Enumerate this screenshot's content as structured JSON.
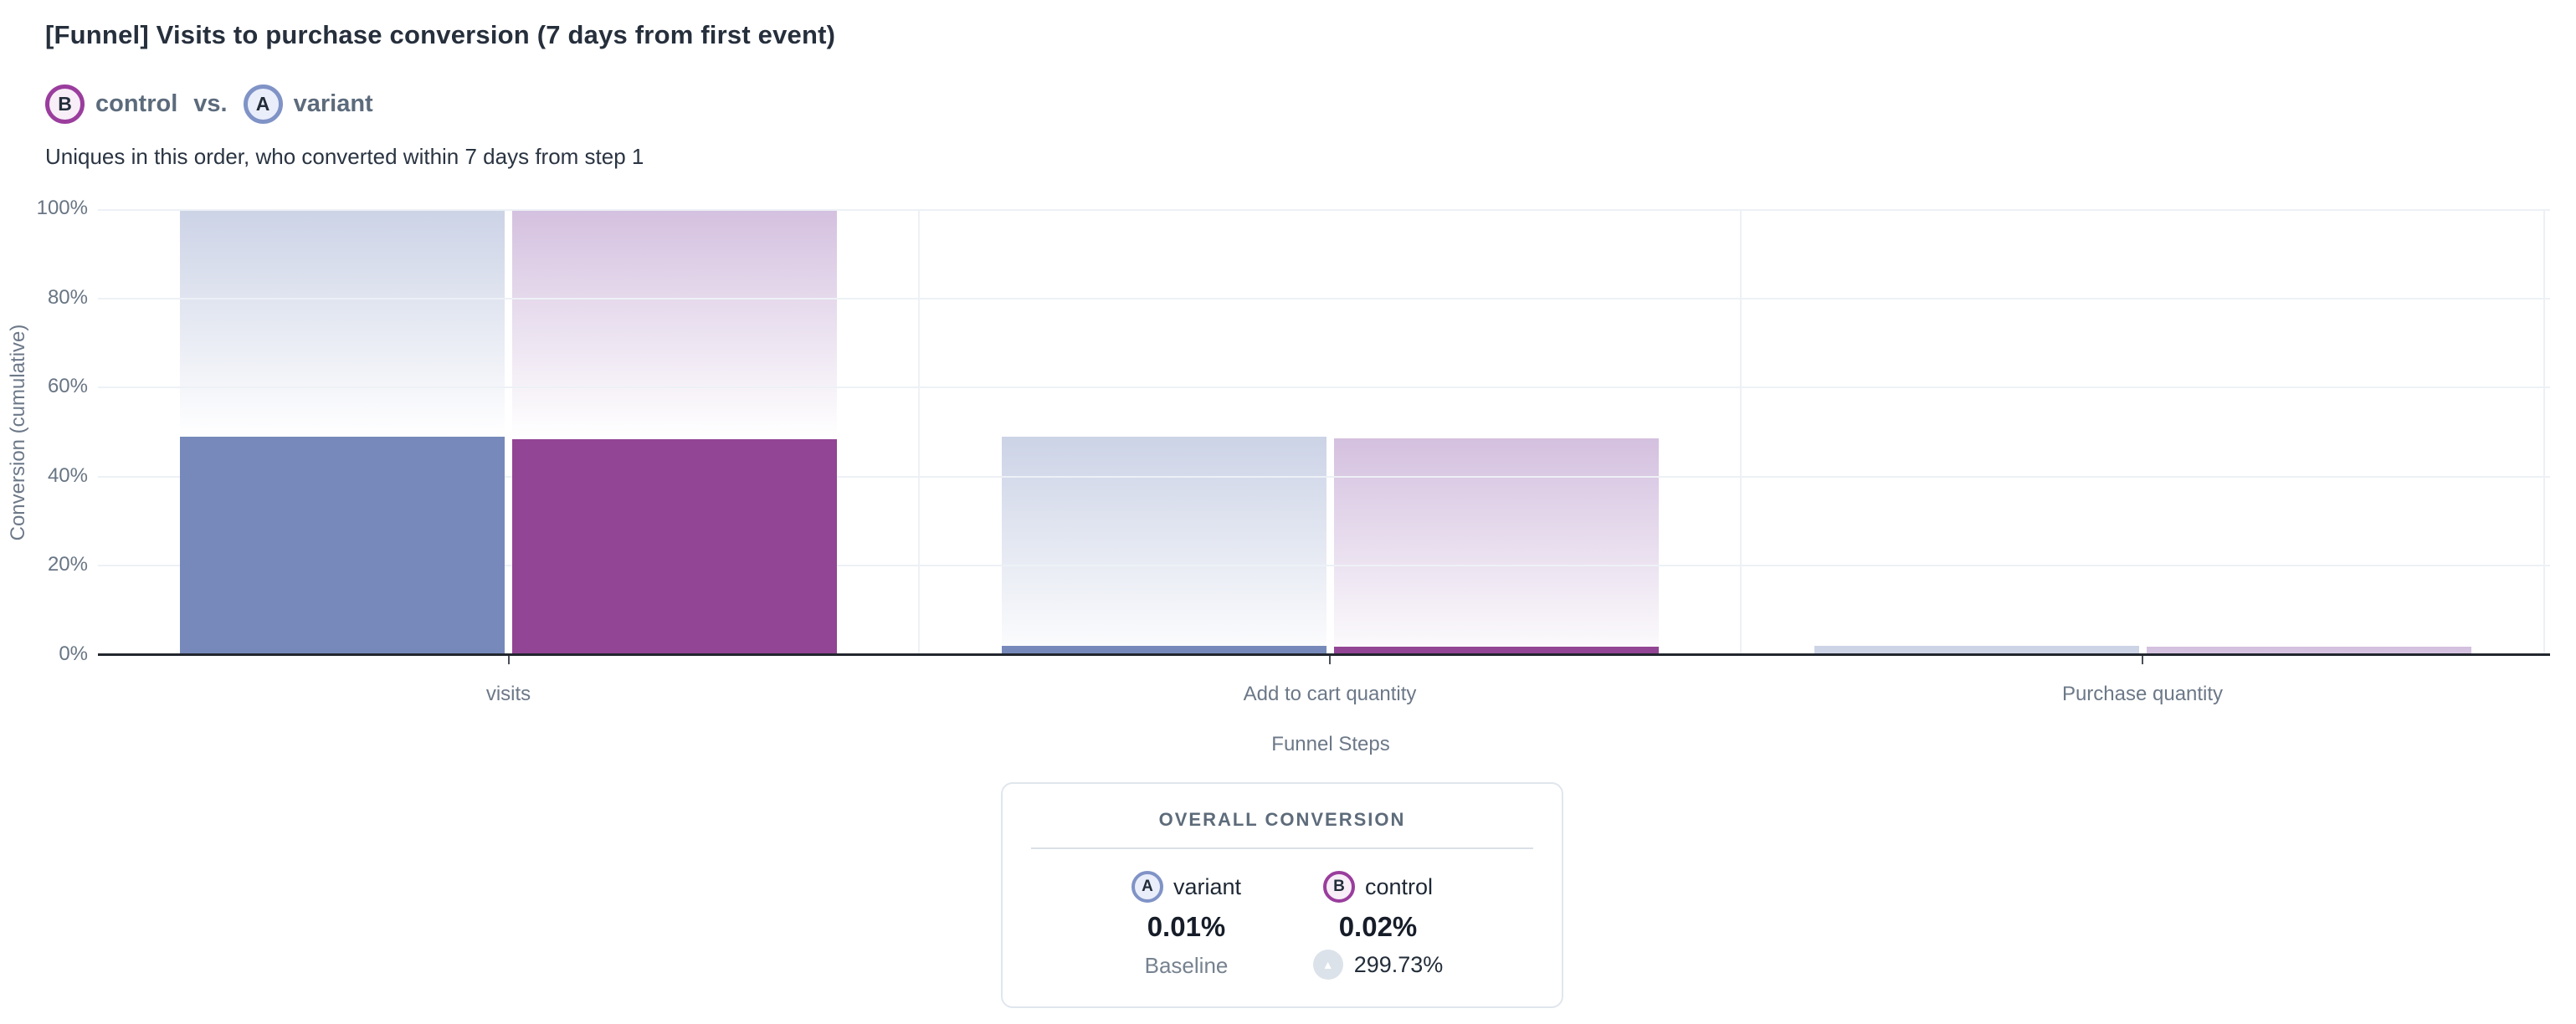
{
  "page": {
    "title": "[Funnel] Visits to purchase conversion (7 days from first event)",
    "subtitle": "Uniques in this order, who converted within 7 days from step 1"
  },
  "legend": {
    "b": {
      "letter": "B",
      "label": "control"
    },
    "vs": "vs.",
    "a": {
      "letter": "A",
      "label": "variant"
    }
  },
  "chart_data": {
    "type": "bar",
    "title": "[Funnel] Visits to purchase conversion (7 days from first event)",
    "xlabel": "Funnel Steps",
    "ylabel": "Conversion (cumulative)",
    "ylim": [
      0,
      100
    ],
    "grid": true,
    "legend_position": "top-left",
    "categories": [
      "visits",
      "Add to cart quantity",
      "Purchase quantity"
    ],
    "yticks": [
      {
        "label": "0%",
        "value": 0
      },
      {
        "label": "20%",
        "value": 20
      },
      {
        "label": "40%",
        "value": 40
      },
      {
        "label": "60%",
        "value": 60
      },
      {
        "label": "80%",
        "value": 80
      },
      {
        "label": "100%",
        "value": 100
      }
    ],
    "series": [
      {
        "name": "variant",
        "letter": "A",
        "solid_color": "#7689BA",
        "gradient_top_color": "#CCD3E6",
        "values_pct": [
          48.9,
          2.0,
          0.01
        ]
      },
      {
        "name": "control",
        "letter": "B",
        "solid_color": "#924594",
        "gradient_top_color": "#D4C0DF",
        "values_pct": [
          48.5,
          1.8,
          0.02
        ]
      }
    ],
    "bar_style": "solid bar = cumulative conversion to step; faded gradient above = drop-off from previous step"
  },
  "overall_conversion": {
    "heading": "OVERALL CONVERSION",
    "variant": {
      "letter": "A",
      "name": "variant",
      "value": "0.01%",
      "note": "Baseline"
    },
    "control": {
      "letter": "B",
      "name": "control",
      "value": "0.02%",
      "delta": "299.73%",
      "delta_direction": "up"
    }
  },
  "colors": {
    "variant_solid": "#7689BA",
    "variant_gradient_top": "#CCD3E6",
    "variant_badge_ring": "#8093C7",
    "variant_badge_fill": "#EAEEFA",
    "control_solid": "#924594",
    "control_gradient_top": "#D4C0DF",
    "control_badge_ring": "#9A3D9D",
    "control_badge_fill": "#F7EEF7",
    "gridline": "#EDF1F6",
    "axis_line": "#22262E",
    "muted_text": "#6C7888",
    "card_border": "#E0E6ED",
    "delta_badge_bg": "#DCE2E9"
  }
}
